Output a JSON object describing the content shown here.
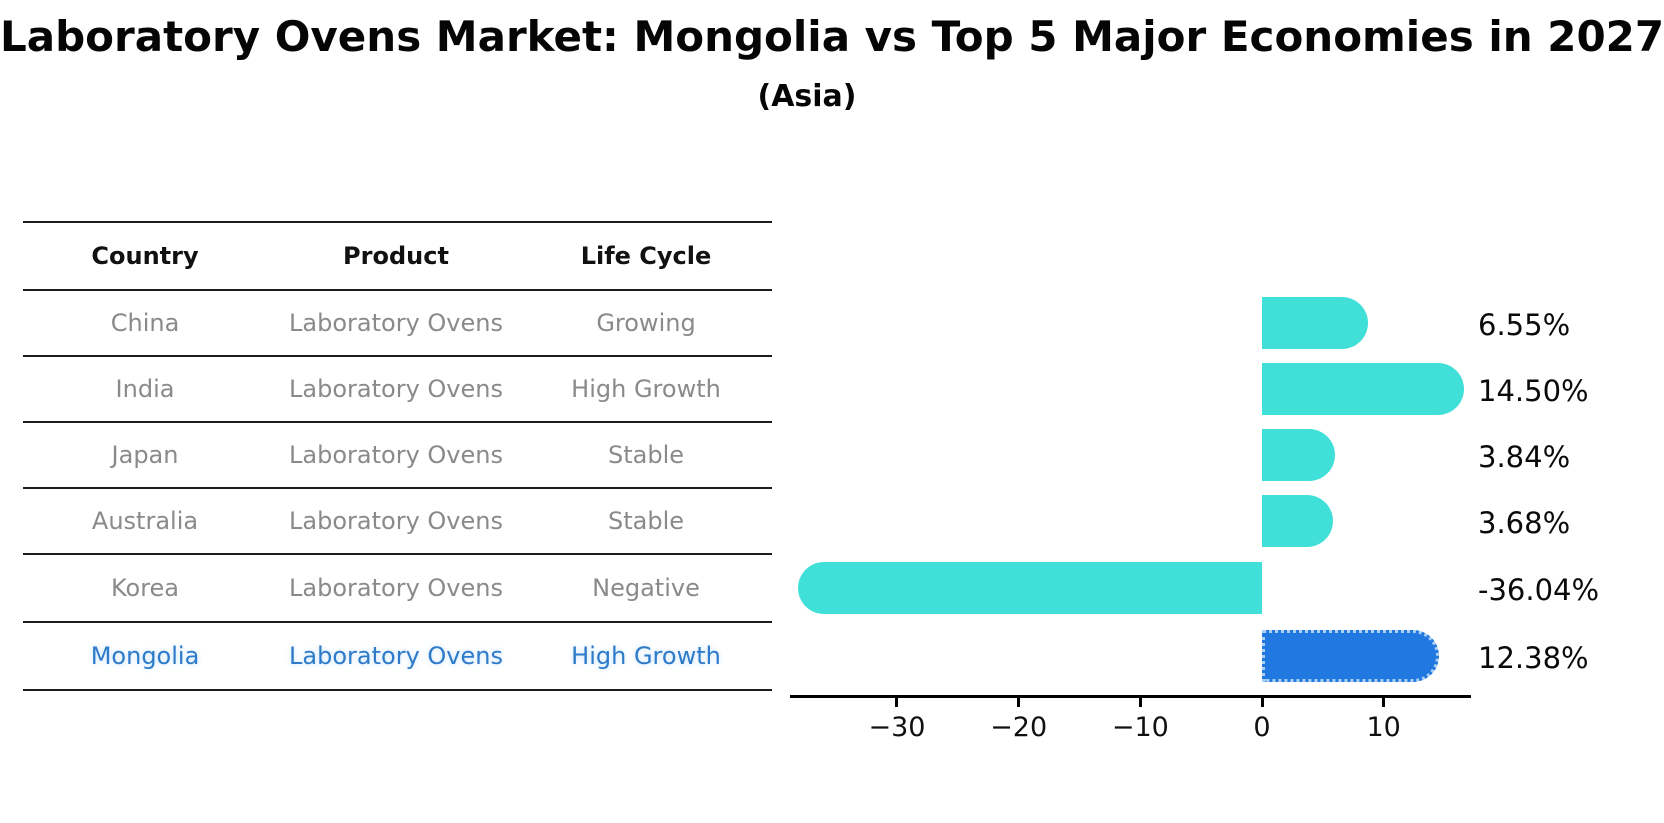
{
  "chart_data": {
    "type": "bar",
    "orientation": "horizontal",
    "title": "Laboratory Ovens Market: Mongolia vs Top 5 Major Economies in 2027",
    "subtitle": "(Asia)",
    "categories": [
      "China",
      "India",
      "Japan",
      "Australia",
      "Korea",
      "Mongolia"
    ],
    "values": [
      6.55,
      14.5,
      3.84,
      3.68,
      -36.04,
      12.38
    ],
    "value_labels": [
      "6.55%",
      "14.50%",
      "3.84%",
      "3.68%",
      "-36.04%",
      "12.38%"
    ],
    "highlight_index": 5,
    "x_ticks": [
      -30,
      -20,
      -10,
      0,
      10
    ],
    "x_tick_labels": [
      "−30",
      "−20",
      "−10",
      "0",
      "10"
    ],
    "xlim": [
      -38.8,
      17.2
    ],
    "grid": false,
    "bar_color": "#40E0D8",
    "highlight_bar_color": "#2078E0",
    "highlight_border_color": "#A9CFF5"
  },
  "table": {
    "headers": [
      "Country",
      "Product",
      "Life Cycle"
    ],
    "rows": [
      {
        "cells": [
          "China",
          "Laboratory Ovens",
          "Growing"
        ],
        "highlight": false
      },
      {
        "cells": [
          "India",
          "Laboratory Ovens",
          "High Growth"
        ],
        "highlight": false
      },
      {
        "cells": [
          "Japan",
          "Laboratory Ovens",
          "Stable"
        ],
        "highlight": false
      },
      {
        "cells": [
          "Australia",
          "Laboratory Ovens",
          "Stable"
        ],
        "highlight": false
      },
      {
        "cells": [
          "Korea",
          "Laboratory Ovens",
          "Negative"
        ],
        "highlight": false
      },
      {
        "cells": [
          "Mongolia",
          "Laboratory Ovens",
          "High Growth"
        ],
        "highlight": true
      }
    ],
    "text_color": "#8A8A8A",
    "highlight_text_color": "#2E7BC9"
  }
}
